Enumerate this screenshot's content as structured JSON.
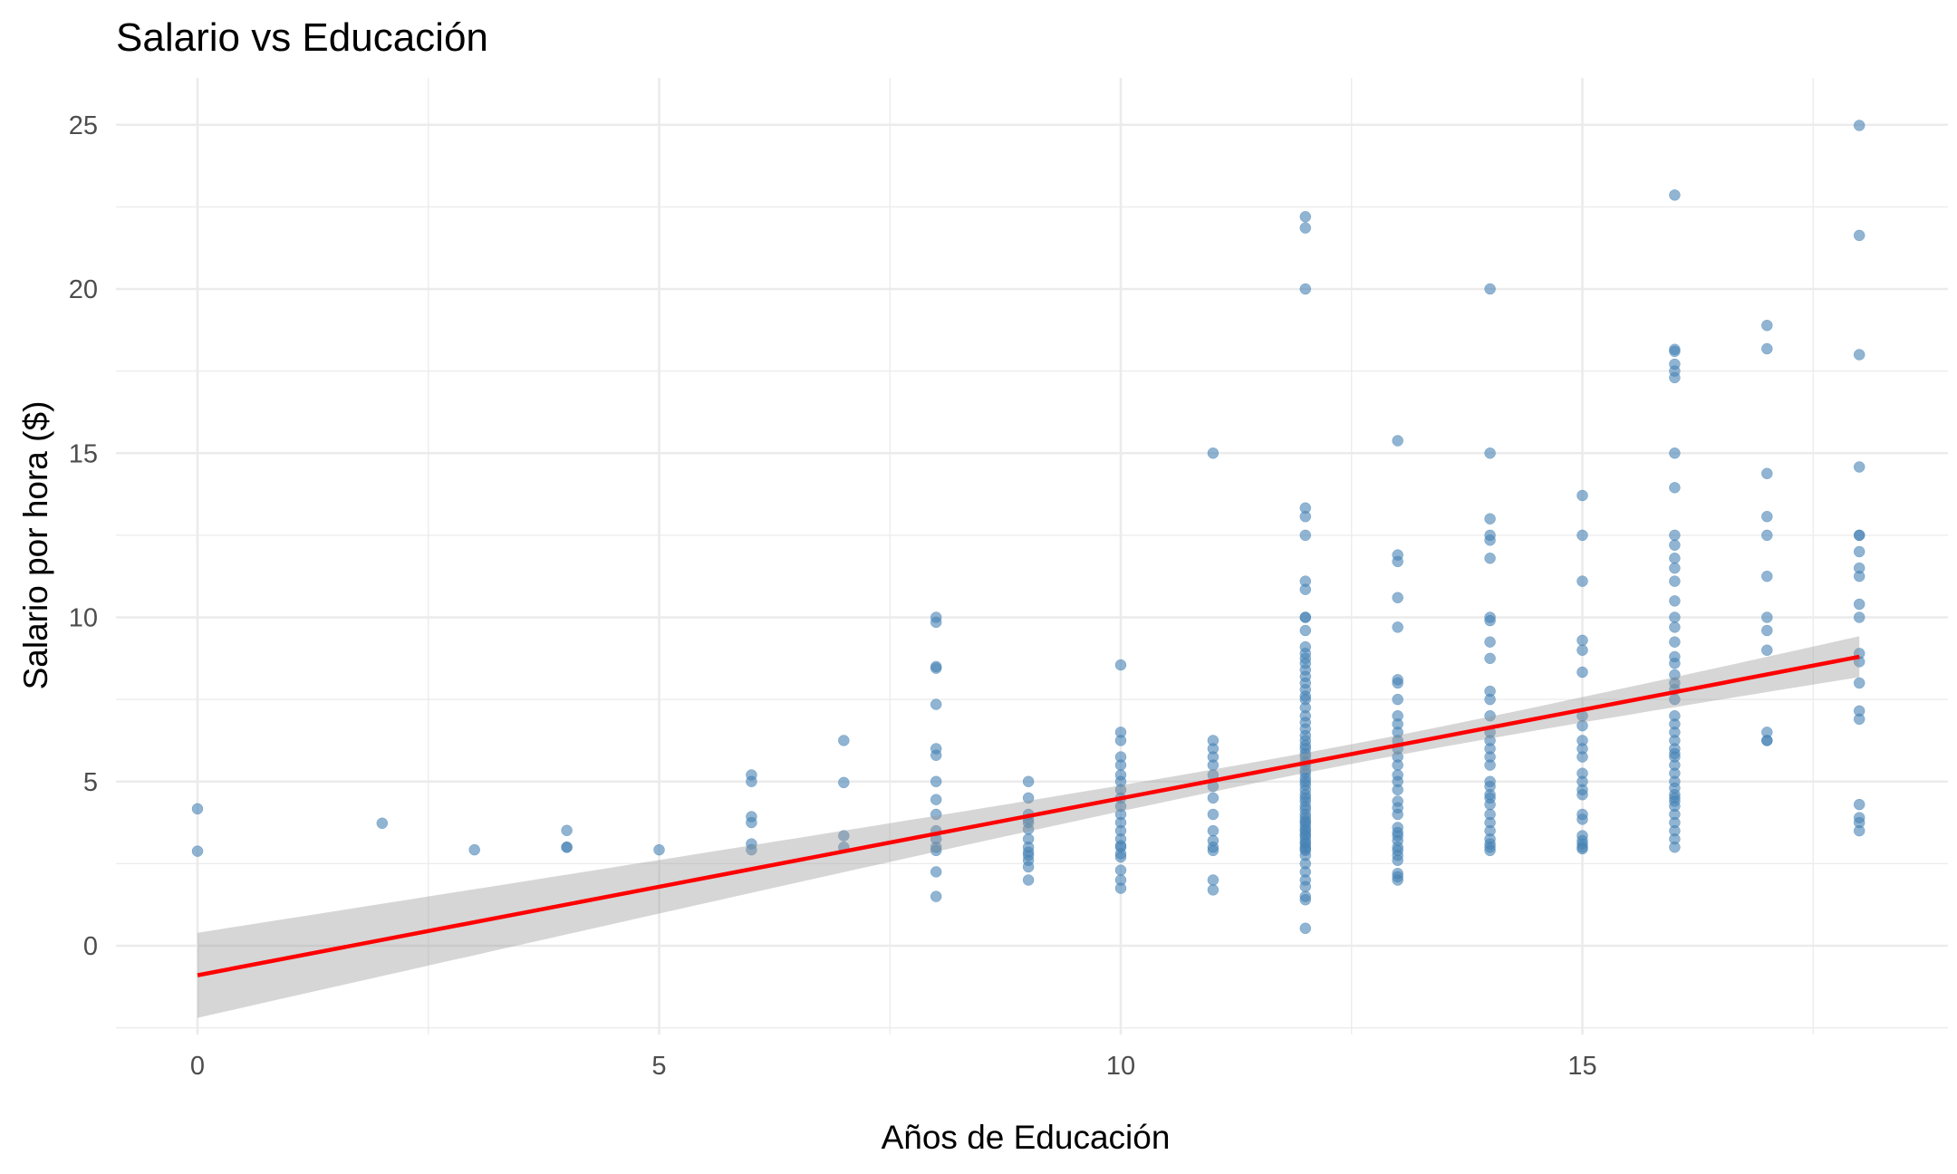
{
  "chart_data": {
    "type": "scatter",
    "title": "Salario vs Educación",
    "xlabel": "Años de Educación",
    "ylabel": "Salario por hora ($)",
    "xlim": [
      -0.9,
      18.9
    ],
    "ylim": [
      -2.5,
      26.3
    ],
    "x_ticks": [
      0,
      5,
      10,
      15
    ],
    "x_tick_labels": [
      "0",
      "5",
      "10",
      "15"
    ],
    "y_ticks": [
      0,
      5,
      10,
      15,
      20,
      25
    ],
    "y_tick_labels": [
      "0",
      "5",
      "10",
      "15",
      "20",
      "25"
    ],
    "grid": true,
    "legend": "none",
    "point_color": "#4682B4",
    "fit_color": "#ff0000",
    "band_color": "#999999",
    "series": [
      {
        "points": [
          [
            0,
            4.17
          ],
          [
            0,
            2.88
          ],
          [
            2,
            3.73
          ],
          [
            3,
            2.92
          ],
          [
            4,
            3.51
          ],
          [
            4,
            3.0
          ],
          [
            4,
            3.0
          ],
          [
            5,
            2.92
          ],
          [
            6,
            5.2
          ],
          [
            6,
            5.0
          ],
          [
            6,
            3.93
          ],
          [
            6,
            3.75
          ],
          [
            6,
            3.1
          ],
          [
            6,
            2.92
          ],
          [
            7,
            6.25
          ],
          [
            7,
            4.97
          ],
          [
            7,
            3.35
          ],
          [
            7,
            3.0
          ],
          [
            8,
            10.0
          ],
          [
            8,
            9.85
          ],
          [
            8,
            8.5
          ],
          [
            8,
            8.45
          ],
          [
            8,
            7.35
          ],
          [
            8,
            6.0
          ],
          [
            8,
            5.8
          ],
          [
            8,
            5.0
          ],
          [
            8,
            4.45
          ],
          [
            8,
            4.0
          ],
          [
            8,
            3.5
          ],
          [
            8,
            3.25
          ],
          [
            8,
            3.0
          ],
          [
            8,
            2.9
          ],
          [
            8,
            2.25
          ],
          [
            8,
            1.5
          ],
          [
            9,
            5.0
          ],
          [
            9,
            4.5
          ],
          [
            9,
            4.0
          ],
          [
            9,
            3.85
          ],
          [
            9,
            3.75
          ],
          [
            9,
            3.55
          ],
          [
            9,
            3.25
          ],
          [
            9,
            3.0
          ],
          [
            9,
            2.85
          ],
          [
            9,
            2.75
          ],
          [
            9,
            2.6
          ],
          [
            9,
            2.4
          ],
          [
            9,
            2.0
          ],
          [
            10,
            8.55
          ],
          [
            10,
            6.5
          ],
          [
            10,
            6.25
          ],
          [
            10,
            5.75
          ],
          [
            10,
            5.5
          ],
          [
            10,
            5.2
          ],
          [
            10,
            5.0
          ],
          [
            10,
            4.75
          ],
          [
            10,
            4.5
          ],
          [
            10,
            4.25
          ],
          [
            10,
            4.0
          ],
          [
            10,
            3.75
          ],
          [
            10,
            3.5
          ],
          [
            10,
            3.25
          ],
          [
            10,
            3.05
          ],
          [
            10,
            3.0
          ],
          [
            10,
            2.8
          ],
          [
            10,
            2.7
          ],
          [
            10,
            2.3
          ],
          [
            10,
            2.0
          ],
          [
            10,
            1.75
          ],
          [
            11,
            15.0
          ],
          [
            11,
            6.25
          ],
          [
            11,
            6.0
          ],
          [
            11,
            5.75
          ],
          [
            11,
            5.5
          ],
          [
            11,
            5.2
          ],
          [
            11,
            4.85
          ],
          [
            11,
            4.5
          ],
          [
            11,
            4.0
          ],
          [
            11,
            3.5
          ],
          [
            11,
            3.2
          ],
          [
            11,
            3.0
          ],
          [
            11,
            2.9
          ],
          [
            11,
            2.0
          ],
          [
            11,
            1.7
          ],
          [
            12,
            22.2
          ],
          [
            12,
            21.86
          ],
          [
            12,
            20.0
          ],
          [
            12,
            13.33
          ],
          [
            12,
            13.07
          ],
          [
            12,
            12.5
          ],
          [
            12,
            11.1
          ],
          [
            12,
            10.85
          ],
          [
            12,
            10.0
          ],
          [
            12,
            10.0
          ],
          [
            12,
            9.6
          ],
          [
            12,
            9.1
          ],
          [
            12,
            8.9
          ],
          [
            12,
            8.75
          ],
          [
            12,
            8.6
          ],
          [
            12,
            8.4
          ],
          [
            12,
            8.2
          ],
          [
            12,
            8.0
          ],
          [
            12,
            7.8
          ],
          [
            12,
            7.6
          ],
          [
            12,
            7.5
          ],
          [
            12,
            7.25
          ],
          [
            12,
            7.0
          ],
          [
            12,
            6.8
          ],
          [
            12,
            6.6
          ],
          [
            12,
            6.4
          ],
          [
            12,
            6.25
          ],
          [
            12,
            6.1
          ],
          [
            12,
            6.0
          ],
          [
            12,
            5.85
          ],
          [
            12,
            5.75
          ],
          [
            12,
            5.6
          ],
          [
            12,
            5.5
          ],
          [
            12,
            5.35
          ],
          [
            12,
            5.25
          ],
          [
            12,
            5.1
          ],
          [
            12,
            5.0
          ],
          [
            12,
            4.9
          ],
          [
            12,
            4.75
          ],
          [
            12,
            4.6
          ],
          [
            12,
            4.5
          ],
          [
            12,
            4.4
          ],
          [
            12,
            4.25
          ],
          [
            12,
            4.15
          ],
          [
            12,
            4.0
          ],
          [
            12,
            3.9
          ],
          [
            12,
            3.8
          ],
          [
            12,
            3.75
          ],
          [
            12,
            3.65
          ],
          [
            12,
            3.55
          ],
          [
            12,
            3.5
          ],
          [
            12,
            3.4
          ],
          [
            12,
            3.35
          ],
          [
            12,
            3.25
          ],
          [
            12,
            3.15
          ],
          [
            12,
            3.1
          ],
          [
            12,
            3.0
          ],
          [
            12,
            2.95
          ],
          [
            12,
            2.9
          ],
          [
            12,
            2.75
          ],
          [
            12,
            2.5
          ],
          [
            12,
            2.25
          ],
          [
            12,
            2.0
          ],
          [
            12,
            1.8
          ],
          [
            12,
            1.5
          ],
          [
            12,
            1.4
          ],
          [
            12,
            0.53
          ],
          [
            13,
            15.38
          ],
          [
            13,
            11.9
          ],
          [
            13,
            11.7
          ],
          [
            13,
            10.6
          ],
          [
            13,
            9.7
          ],
          [
            13,
            8.1
          ],
          [
            13,
            8.0
          ],
          [
            13,
            7.5
          ],
          [
            13,
            7.0
          ],
          [
            13,
            6.75
          ],
          [
            13,
            6.5
          ],
          [
            13,
            6.25
          ],
          [
            13,
            6.0
          ],
          [
            13,
            5.75
          ],
          [
            13,
            5.5
          ],
          [
            13,
            5.2
          ],
          [
            13,
            5.0
          ],
          [
            13,
            4.75
          ],
          [
            13,
            4.4
          ],
          [
            13,
            4.2
          ],
          [
            13,
            4.0
          ],
          [
            13,
            3.6
          ],
          [
            13,
            3.45
          ],
          [
            13,
            3.35
          ],
          [
            13,
            3.2
          ],
          [
            13,
            3.0
          ],
          [
            13,
            2.9
          ],
          [
            13,
            2.75
          ],
          [
            13,
            2.6
          ],
          [
            13,
            2.2
          ],
          [
            13,
            2.1
          ],
          [
            13,
            2.0
          ],
          [
            14,
            20.0
          ],
          [
            14,
            15.0
          ],
          [
            14,
            13.0
          ],
          [
            14,
            12.5
          ],
          [
            14,
            12.35
          ],
          [
            14,
            11.8
          ],
          [
            14,
            10.0
          ],
          [
            14,
            9.9
          ],
          [
            14,
            9.25
          ],
          [
            14,
            8.75
          ],
          [
            14,
            7.75
          ],
          [
            14,
            7.5
          ],
          [
            14,
            7.0
          ],
          [
            14,
            6.5
          ],
          [
            14,
            6.25
          ],
          [
            14,
            6.0
          ],
          [
            14,
            5.75
          ],
          [
            14,
            5.5
          ],
          [
            14,
            5.0
          ],
          [
            14,
            4.85
          ],
          [
            14,
            4.6
          ],
          [
            14,
            4.5
          ],
          [
            14,
            4.3
          ],
          [
            14,
            4.0
          ],
          [
            14,
            3.75
          ],
          [
            14,
            3.5
          ],
          [
            14,
            3.25
          ],
          [
            14,
            3.1
          ],
          [
            14,
            3.0
          ],
          [
            14,
            2.9
          ],
          [
            15,
            13.71
          ],
          [
            15,
            12.5
          ],
          [
            15,
            11.1
          ],
          [
            15,
            9.3
          ],
          [
            15,
            9.0
          ],
          [
            15,
            8.33
          ],
          [
            15,
            7.0
          ],
          [
            15,
            6.7
          ],
          [
            15,
            6.25
          ],
          [
            15,
            6.0
          ],
          [
            15,
            5.75
          ],
          [
            15,
            5.25
          ],
          [
            15,
            5.0
          ],
          [
            15,
            4.75
          ],
          [
            15,
            4.6
          ],
          [
            15,
            4.0
          ],
          [
            15,
            3.85
          ],
          [
            15,
            3.35
          ],
          [
            15,
            3.2
          ],
          [
            15,
            3.1
          ],
          [
            15,
            3.0
          ],
          [
            15,
            2.95
          ],
          [
            16,
            22.86
          ],
          [
            16,
            18.16
          ],
          [
            16,
            18.1
          ],
          [
            16,
            17.71
          ],
          [
            16,
            17.5
          ],
          [
            16,
            17.3
          ],
          [
            16,
            15.0
          ],
          [
            16,
            13.95
          ],
          [
            16,
            12.5
          ],
          [
            16,
            12.2
          ],
          [
            16,
            11.8
          ],
          [
            16,
            11.5
          ],
          [
            16,
            11.1
          ],
          [
            16,
            10.5
          ],
          [
            16,
            10.0
          ],
          [
            16,
            9.7
          ],
          [
            16,
            9.25
          ],
          [
            16,
            8.8
          ],
          [
            16,
            8.6
          ],
          [
            16,
            8.25
          ],
          [
            16,
            8.0
          ],
          [
            16,
            7.8
          ],
          [
            16,
            7.5
          ],
          [
            16,
            7.0
          ],
          [
            16,
            6.75
          ],
          [
            16,
            6.5
          ],
          [
            16,
            6.25
          ],
          [
            16,
            6.0
          ],
          [
            16,
            5.85
          ],
          [
            16,
            5.75
          ],
          [
            16,
            5.5
          ],
          [
            16,
            5.25
          ],
          [
            16,
            5.0
          ],
          [
            16,
            4.8
          ],
          [
            16,
            4.6
          ],
          [
            16,
            4.5
          ],
          [
            16,
            4.4
          ],
          [
            16,
            4.25
          ],
          [
            16,
            4.0
          ],
          [
            16,
            3.75
          ],
          [
            16,
            3.5
          ],
          [
            16,
            3.25
          ],
          [
            16,
            3.0
          ],
          [
            17,
            18.89
          ],
          [
            17,
            18.18
          ],
          [
            17,
            14.38
          ],
          [
            17,
            13.07
          ],
          [
            17,
            12.5
          ],
          [
            17,
            11.25
          ],
          [
            17,
            10.0
          ],
          [
            17,
            9.6
          ],
          [
            17,
            9.0
          ],
          [
            17,
            6.5
          ],
          [
            17,
            6.25
          ],
          [
            17,
            6.25
          ],
          [
            18,
            24.98
          ],
          [
            18,
            21.63
          ],
          [
            18,
            18.0
          ],
          [
            18,
            14.58
          ],
          [
            18,
            12.5
          ],
          [
            18,
            12.5
          ],
          [
            18,
            12.0
          ],
          [
            18,
            11.5
          ],
          [
            18,
            11.25
          ],
          [
            18,
            10.4
          ],
          [
            18,
            10.0
          ],
          [
            18,
            8.9
          ],
          [
            18,
            8.65
          ],
          [
            18,
            8.0
          ],
          [
            18,
            7.15
          ],
          [
            18,
            6.9
          ],
          [
            18,
            4.3
          ],
          [
            18,
            3.9
          ],
          [
            18,
            3.75
          ],
          [
            18,
            3.5
          ]
        ]
      }
    ],
    "fit": {
      "method": "lm",
      "x_range": [
        0,
        18
      ],
      "y_at_start": -0.9,
      "y_at_end": 8.8,
      "ci_lower_at_start": -2.25,
      "ci_upper_at_start": 0.45,
      "ci_lower_at_end": 8.2,
      "ci_upper_at_end": 9.4,
      "x_at_narrowest": 12.56,
      "ci_halfwidth_at_narrowest": 0.3
    }
  }
}
